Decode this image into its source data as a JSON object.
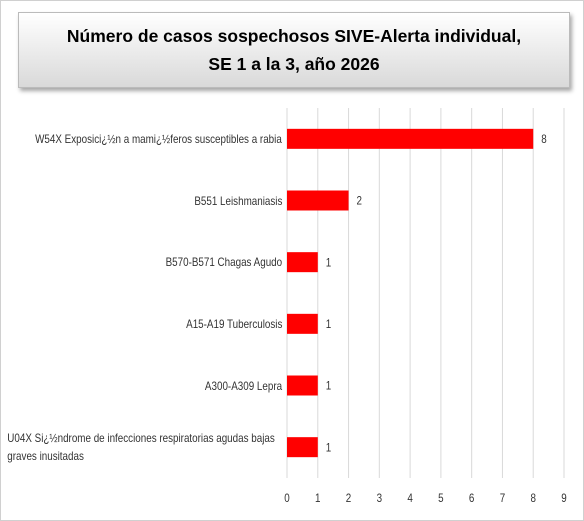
{
  "chart_data": {
    "type": "bar",
    "orientation": "horizontal",
    "title": [
      "Número de casos sospechosos SIVE-Alerta individual,",
      "SE 1 a la 3, año 2026"
    ],
    "categories": [
      "W54X Exposici¿½n a mami¿½feros susceptibles a rabia",
      "B551 Leishmaniasis",
      "B570-B571 Chagas Agudo",
      "A15-A19 Tuberculosis",
      "A300-A309 Lepra",
      "U04X Si¿½ndrome de infecciones respiratorias agudas bajas graves inusitadas"
    ],
    "values": [
      8,
      2,
      1,
      1,
      1,
      1
    ],
    "color": "#ff0000",
    "xlim": [
      0,
      9
    ],
    "xticks": [
      0,
      1,
      2,
      3,
      4,
      5,
      6,
      7,
      8,
      9
    ],
    "grid": true
  }
}
